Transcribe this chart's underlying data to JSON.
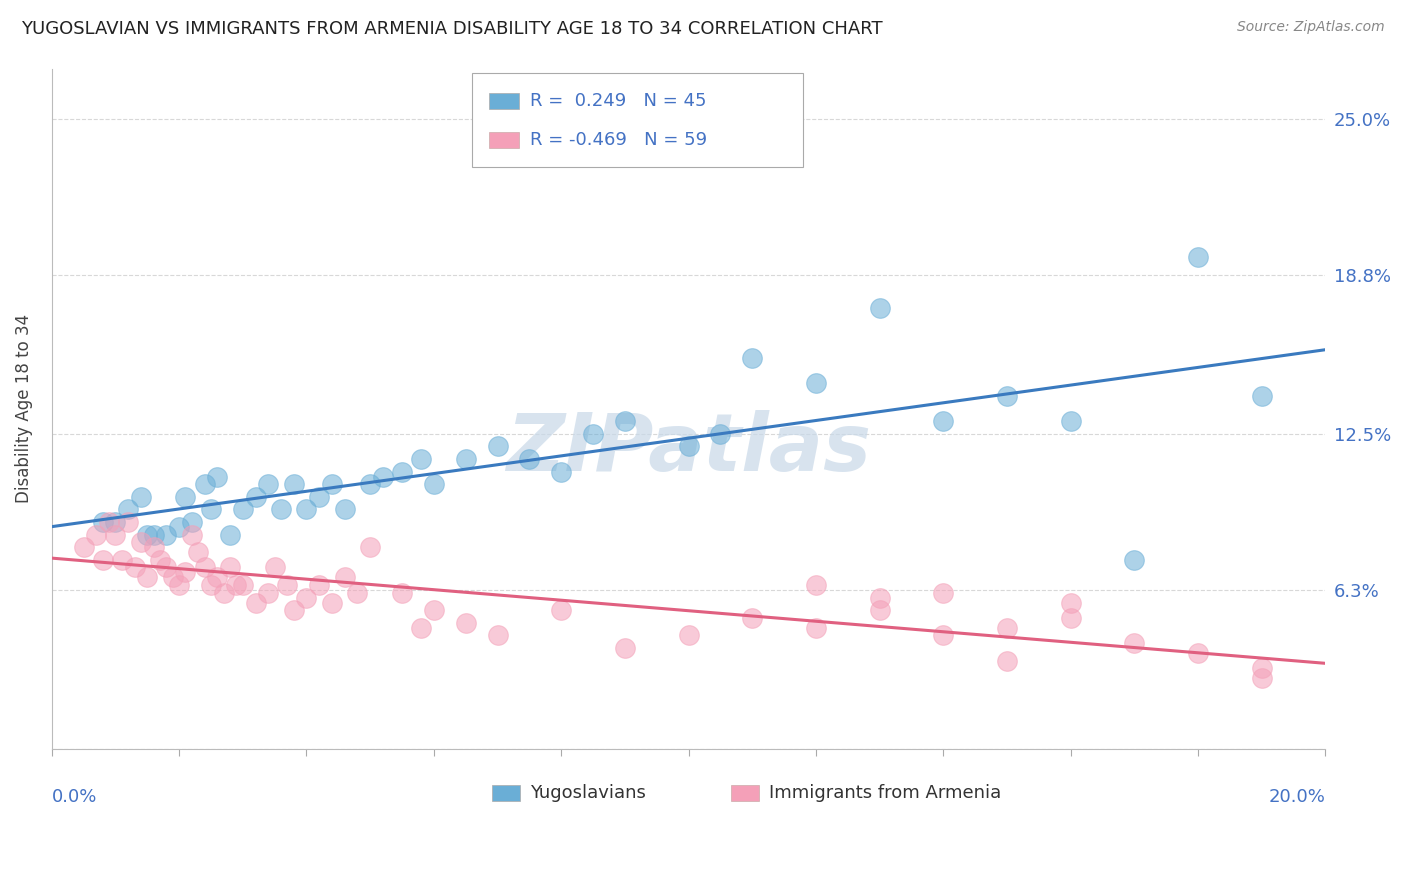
{
  "title": "YUGOSLAVIAN VS IMMIGRANTS FROM ARMENIA DISABILITY AGE 18 TO 34 CORRELATION CHART",
  "source": "Source: ZipAtlas.com",
  "ylabel": "Disability Age 18 to 34",
  "ytick_vals": [
    0.0,
    0.063,
    0.125,
    0.188,
    0.25
  ],
  "ytick_labels": [
    "",
    "6.3%",
    "12.5%",
    "18.8%",
    "25.0%"
  ],
  "xlim": [
    0.0,
    0.2
  ],
  "ylim": [
    0.0,
    0.27
  ],
  "blue_color": "#6aaed6",
  "blue_line_color": "#3a7abf",
  "pink_color": "#f4a0b8",
  "pink_line_color": "#e06080",
  "blue_R": 0.249,
  "blue_N": 45,
  "pink_R": -0.469,
  "pink_N": 59,
  "blue_label": "Yugoslavians",
  "pink_label": "Immigrants from Armenia",
  "blue_scatter_x": [
    0.008,
    0.01,
    0.012,
    0.014,
    0.015,
    0.016,
    0.018,
    0.02,
    0.021,
    0.022,
    0.024,
    0.025,
    0.026,
    0.028,
    0.03,
    0.032,
    0.034,
    0.036,
    0.038,
    0.04,
    0.042,
    0.044,
    0.046,
    0.05,
    0.052,
    0.055,
    0.058,
    0.06,
    0.065,
    0.07,
    0.075,
    0.08,
    0.085,
    0.09,
    0.1,
    0.105,
    0.11,
    0.12,
    0.13,
    0.14,
    0.15,
    0.16,
    0.17,
    0.18,
    0.19
  ],
  "blue_scatter_y": [
    0.09,
    0.09,
    0.095,
    0.1,
    0.085,
    0.085,
    0.085,
    0.088,
    0.1,
    0.09,
    0.105,
    0.095,
    0.108,
    0.085,
    0.095,
    0.1,
    0.105,
    0.095,
    0.105,
    0.095,
    0.1,
    0.105,
    0.095,
    0.105,
    0.108,
    0.11,
    0.115,
    0.105,
    0.115,
    0.12,
    0.115,
    0.11,
    0.125,
    0.13,
    0.12,
    0.125,
    0.155,
    0.145,
    0.175,
    0.13,
    0.14,
    0.13,
    0.075,
    0.195,
    0.14
  ],
  "pink_scatter_x": [
    0.005,
    0.007,
    0.008,
    0.009,
    0.01,
    0.011,
    0.012,
    0.013,
    0.014,
    0.015,
    0.016,
    0.017,
    0.018,
    0.019,
    0.02,
    0.021,
    0.022,
    0.023,
    0.024,
    0.025,
    0.026,
    0.027,
    0.028,
    0.029,
    0.03,
    0.032,
    0.034,
    0.035,
    0.037,
    0.038,
    0.04,
    0.042,
    0.044,
    0.046,
    0.048,
    0.05,
    0.055,
    0.058,
    0.06,
    0.065,
    0.07,
    0.08,
    0.09,
    0.1,
    0.11,
    0.12,
    0.13,
    0.14,
    0.15,
    0.16,
    0.17,
    0.18,
    0.19,
    0.12,
    0.13,
    0.14,
    0.15,
    0.16,
    0.19
  ],
  "pink_scatter_y": [
    0.08,
    0.085,
    0.075,
    0.09,
    0.085,
    0.075,
    0.09,
    0.072,
    0.082,
    0.068,
    0.08,
    0.075,
    0.072,
    0.068,
    0.065,
    0.07,
    0.085,
    0.078,
    0.072,
    0.065,
    0.068,
    0.062,
    0.072,
    0.065,
    0.065,
    0.058,
    0.062,
    0.072,
    0.065,
    0.055,
    0.06,
    0.065,
    0.058,
    0.068,
    0.062,
    0.08,
    0.062,
    0.048,
    0.055,
    0.05,
    0.045,
    0.055,
    0.04,
    0.045,
    0.052,
    0.048,
    0.06,
    0.045,
    0.035,
    0.052,
    0.042,
    0.038,
    0.028,
    0.065,
    0.055,
    0.062,
    0.048,
    0.058,
    0.032
  ],
  "watermark_text": "ZIPatlas",
  "watermark_color": "#c8d8e8",
  "background_color": "#ffffff",
  "grid_color": "#d8d8d8",
  "legend_text_color": "#4472c4"
}
